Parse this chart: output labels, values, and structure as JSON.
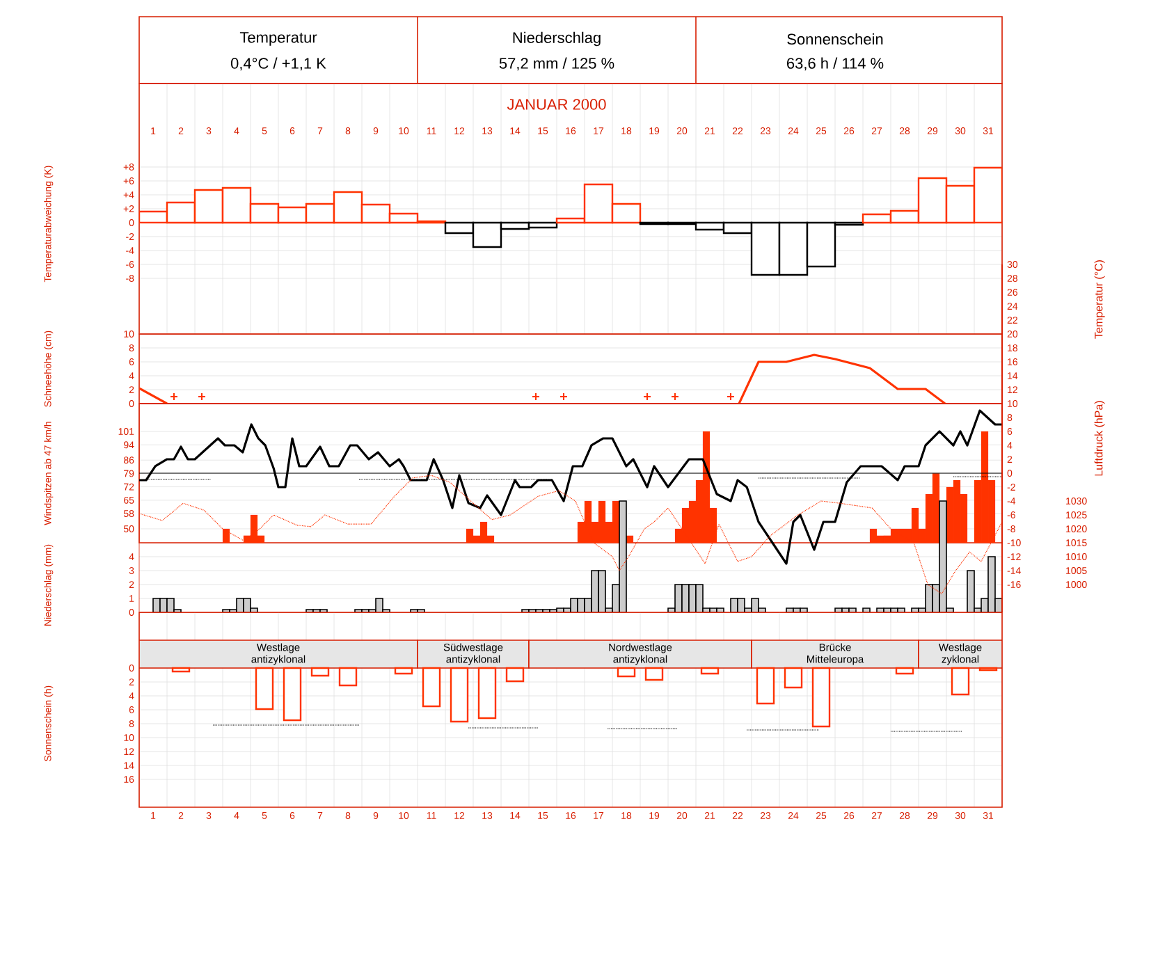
{
  "chart_data": [
    {
      "type": "other",
      "title": "JANUAR 2000",
      "annotations": [
        "Temperatur",
        "0,4°C / +1,1 K",
        "Niederschlag",
        "57,2 mm / 125 %",
        "Sonnenschein",
        "63,6 h / 114 %"
      ]
    },
    {
      "type": "bar",
      "ylabel": "Temperaturabweichung (K)",
      "x": [
        1,
        2,
        3,
        4,
        5,
        6,
        7,
        8,
        9,
        10,
        11,
        12,
        13,
        14,
        15,
        16,
        17,
        18,
        19,
        20,
        21,
        22,
        23,
        24,
        25,
        26,
        27,
        28,
        29,
        30,
        31
      ],
      "values": [
        1.6,
        2.9,
        4.7,
        5.0,
        2.7,
        2.2,
        2.7,
        4.4,
        2.6,
        1.3,
        0.2,
        -1.5,
        -3.5,
        -0.9,
        -0.7,
        0.6,
        5.5,
        2.7,
        -0.2,
        -0.2,
        -1.0,
        -1.5,
        -7.5,
        -7.5,
        -6.3,
        -0.3,
        1.2,
        1.7,
        6.4,
        5.3,
        7.9
      ],
      "colors": [
        "#ff3300",
        "#ff3300",
        "#ff3300",
        "#ff3300",
        "#ff3300",
        "#ff3300",
        "#ff3300",
        "#ff3300",
        "#ff3300",
        "#ff3300",
        "#ff3300",
        "#000000",
        "#000000",
        "#000000",
        "#000000",
        "#ff3300",
        "#ff3300",
        "#ff3300",
        "#000000",
        "#000000",
        "#000000",
        "#000000",
        "#000000",
        "#000000",
        "#000000",
        "#000000",
        "#ff3300",
        "#ff3300",
        "#ff3300",
        "#ff3300",
        "#ff3300"
      ],
      "xlim": [
        0.5,
        31.5
      ],
      "xticks": [
        1,
        2,
        3,
        4,
        5,
        6,
        7,
        8,
        9,
        10,
        11,
        12,
        13,
        14,
        15,
        16,
        17,
        18,
        19,
        20,
        21,
        22,
        23,
        24,
        25,
        26,
        27,
        28,
        29,
        30,
        31
      ],
      "ylim": [
        -16,
        20
      ],
      "yticks": [
        -8,
        -6,
        -4,
        -2,
        0,
        {
          "value": 2,
          "label": "+2"
        },
        {
          "value": 4,
          "label": "+4"
        },
        {
          "value": 6,
          "label": "+6"
        },
        {
          "value": 8,
          "label": "+8"
        }
      ],
      "grid": true
    },
    {
      "type": "line",
      "ylabel": "Schneehöhe (cm)",
      "series": [
        {
          "color": "#ff3300",
          "x": [
            0.5,
            1.5
          ],
          "values": [
            2.2,
            0
          ]
        },
        {
          "color": "#ff3300",
          "x": [
            22.05,
            22.75,
            23.75,
            24.75,
            25.5,
            26.75,
            27.75,
            28.75,
            29.45
          ],
          "values": [
            0,
            6,
            6,
            7,
            6.4,
            5.1,
            2.1,
            2.1,
            0
          ]
        },
        {
          "type": "scatter",
          "marker": "cross",
          "color": "#ff3300",
          "x": [
            1.75,
            2.75,
            14.75,
            15.75,
            18.75,
            19.75,
            21.75
          ],
          "values": [
            1,
            1,
            1,
            1,
            1,
            1,
            1
          ]
        }
      ],
      "xlim": [
        0.5,
        31.5
      ],
      "ylim": [
        0,
        10
      ],
      "yticks": [
        0,
        2,
        4,
        6,
        8,
        10
      ],
      "tick_labels": "y",
      "grid": true
    },
    {
      "type": "bar",
      "ylabel": "Windspitzen ab 47 km/h",
      "x": [
        3.625,
        4.375,
        4.625,
        4.875,
        12.375,
        12.625,
        12.875,
        13.125,
        16.375,
        16.625,
        16.875,
        17.125,
        17.375,
        17.625,
        17.875,
        18.125,
        19.875,
        20.125,
        20.375,
        20.625,
        20.875,
        21.125,
        26.875,
        27.125,
        27.375,
        27.625,
        27.875,
        28.125,
        28.375,
        28.625,
        28.875,
        29.125,
        29.375,
        29.625,
        29.875,
        30.125,
        30.625,
        30.875,
        31.125
      ],
      "values": [
        50,
        46.4,
        57.3,
        46.4,
        50,
        46.4,
        53.6,
        46.4,
        53.6,
        64.6,
        53.6,
        64.6,
        53.6,
        64.6,
        null,
        46.4,
        50,
        60.9,
        64.6,
        75.5,
        101,
        60.9,
        50,
        46.4,
        46.4,
        50,
        50,
        50,
        60.9,
        50,
        68.2,
        79.1,
        null,
        71.9,
        75.5,
        68.2,
        75.5,
        101,
        75.5
      ],
      "color": "#ff3300",
      "xlim": [
        0.5,
        31.5
      ],
      "ylim": [
        42.7,
        115.6
      ],
      "yticks": [
        50,
        58,
        65,
        72,
        79,
        86,
        94,
        101
      ],
      "tick_labels": "y",
      "grid": true
    },
    {
      "type": "line",
      "y2label": "Temperatur (°C)",
      "y3label": "Luftdruck (hPa)",
      "series": [
        {
          "axis": "y2",
          "color": "#000000",
          "x": [
            0.5,
            0.75,
            1.08,
            1.5,
            1.75,
            2.0,
            2.25,
            2.5,
            3.33,
            3.58,
            3.92,
            4.22,
            4.53,
            4.78,
            5.03,
            5.33,
            5.5,
            5.75,
            6.0,
            6.25,
            6.5,
            7.0,
            7.33,
            7.67,
            8.08,
            8.33,
            8.75,
            9.08,
            9.5,
            9.83,
            10.0,
            10.25,
            10.83,
            11.08,
            11.42,
            11.75,
            12.0,
            12.33,
            12.75,
            13.0,
            13.5,
            14.0,
            14.17,
            14.58,
            14.83,
            15.33,
            15.75,
            16.08,
            16.42,
            16.75,
            17.17,
            17.5,
            18.0,
            18.25,
            18.75,
            19.0,
            19.5,
            20.25,
            20.75,
            21.25,
            21.75,
            22.0,
            22.33,
            22.75,
            23.25,
            23.75,
            24.0,
            24.25,
            24.75,
            25.08,
            25.5,
            25.92,
            26.42,
            27.17,
            27.75,
            28.0,
            28.5,
            28.75,
            29.25,
            29.75,
            30.0,
            30.25,
            30.7,
            31.25,
            31.5
          ],
          "values": [
            -1.0,
            -1.0,
            1.0,
            2.0,
            2.0,
            3.8,
            2.0,
            2.0,
            5.0,
            4.0,
            4.0,
            3.0,
            7.0,
            5.0,
            4.0,
            0.7,
            -2.0,
            -2.0,
            5.0,
            1.0,
            1.0,
            3.8,
            1.0,
            1.0,
            4.0,
            4.0,
            2.0,
            3.0,
            1.0,
            2.0,
            1.0,
            -1.0,
            -1.0,
            2.0,
            -1.0,
            -5.0,
            -0.3,
            -4.3,
            -5.0,
            -3.2,
            -6.0,
            -1.0,
            -2.0,
            -2.0,
            -1.0,
            -1.0,
            -4.0,
            1.0,
            1.0,
            4.0,
            5.0,
            5.0,
            1.0,
            2.0,
            -2.0,
            1.0,
            -2.0,
            2.0,
            2.0,
            -3.0,
            -4.0,
            -1.0,
            -2.0,
            -7.0,
            -10.0,
            -13.0,
            -7.0,
            -6.0,
            -11.0,
            -7.0,
            -7.0,
            -1.3,
            1.0,
            1.0,
            -1.0,
            1.0,
            1.0,
            4.0,
            6.0,
            4.0,
            6.0,
            4.0,
            9.0,
            7.0,
            7.0
          ]
        },
        {
          "axis": "y2",
          "color": "#000000",
          "line_style": "dotted",
          "x": [
            0.75,
            3.08
          ],
          "values": [
            -0.9,
            -0.9
          ]
        },
        {
          "axis": "y2",
          "color": "#000000",
          "line_style": "dotted",
          "x": [
            8.4,
            15.35
          ],
          "values": [
            -0.9,
            -0.9
          ]
        },
        {
          "axis": "y2",
          "color": "#000000",
          "line_style": "dotted",
          "x": [
            22.75,
            26.4
          ],
          "values": [
            -0.7,
            -0.7
          ]
        },
        {
          "axis": "y2",
          "color": "#000000",
          "line_style": "dotted",
          "x": [
            29.75,
            31.5
          ],
          "values": [
            -0.5,
            -0.5
          ]
        },
        {
          "axis": "y3",
          "color": "#ff3300",
          "line_style": "dotted",
          "x": [
            0.5,
            1.33,
            2.08,
            2.83,
            3.5,
            4.25,
            4.83,
            5.33,
            6.17,
            6.67,
            7.17,
            8.0,
            8.83,
            9.67,
            10.33,
            11.0,
            11.67,
            12.5,
            13.17,
            13.83,
            14.83,
            15.58,
            16.17,
            16.83,
            17.5,
            17.75,
            18.08,
            18.65,
            19.0,
            19.5,
            20.0,
            20.5,
            20.83,
            21.33,
            22.0,
            22.5,
            23.17,
            24.17,
            25.0,
            25.67,
            26.83,
            27.5,
            28.33,
            28.83,
            29.33,
            29.83,
            30.33,
            30.75,
            31.5
          ],
          "values": [
            1025.5,
            1023,
            1029.2,
            1026.7,
            1020,
            1015.8,
            1020,
            1025,
            1021.3,
            1020.8,
            1025,
            1021.7,
            1021.7,
            1031.7,
            1038.3,
            1039.2,
            1036.7,
            1029.2,
            1023.3,
            1025,
            1031.7,
            1033.7,
            1030,
            1015,
            1010,
            1005,
            1010,
            1020,
            1022.5,
            1027.5,
            1020,
            1012.5,
            1007.5,
            1021.7,
            1008.3,
            1010,
            1017.5,
            1025,
            1030,
            1029.2,
            1027.5,
            1020,
            1015,
            1000,
            996.7,
            1005,
            1011.7,
            1008.3,
            1022.5
          ]
        }
      ],
      "xlim": [
        0.5,
        31.5
      ],
      "y2lim": [
        -20,
        30
      ],
      "y2ticks": [
        -16,
        -14,
        -12,
        -10,
        -8,
        -6,
        -4,
        -2,
        0,
        2,
        4,
        6,
        8,
        10,
        12,
        14,
        16,
        18,
        20,
        22,
        24,
        26,
        28,
        30
      ],
      "y3lim": [
        990,
        1115
      ],
      "y3ticks": [
        1000,
        1005,
        1010,
        1015,
        1020,
        1025,
        1030
      ],
      "ref_lines": [
        {
          "axis": "y2",
          "value": 0
        }
      ],
      "tick_labels": "y"
    },
    {
      "type": "bar",
      "ylabel": "Niederschlag (mm)",
      "x": [
        1.125,
        1.375,
        1.625,
        1.875,
        3.625,
        3.875,
        4.125,
        4.375,
        4.625,
        6.625,
        6.875,
        7.125,
        8.375,
        8.625,
        8.875,
        9.125,
        9.375,
        10.375,
        10.625,
        14.375,
        14.625,
        14.875,
        15.125,
        15.375,
        15.625,
        15.875,
        16.125,
        16.375,
        16.625,
        16.875,
        17.125,
        17.375,
        17.625,
        17.875,
        19.625,
        19.875,
        20.125,
        20.375,
        20.625,
        20.875,
        21.125,
        21.375,
        21.875,
        22.125,
        22.375,
        22.625,
        22.875,
        23.875,
        24.125,
        24.375,
        25.625,
        25.875,
        26.125,
        26.625,
        27.125,
        27.375,
        27.625,
        27.875,
        28.375,
        28.625,
        28.875,
        29.125,
        29.375,
        29.625,
        30.375,
        30.625,
        30.875,
        31.125,
        31.375
      ],
      "values": [
        1.0,
        1.0,
        1.0,
        0.2,
        0.2,
        0.2,
        1.0,
        1.0,
        0.3,
        0.2,
        0.2,
        0.2,
        0.2,
        0.2,
        0.2,
        1.0,
        0.2,
        0.2,
        0.2,
        0.2,
        0.2,
        0.2,
        0.2,
        0.2,
        0.3,
        0.3,
        1.0,
        1.0,
        1.0,
        3.0,
        3.0,
        0.3,
        2.0,
        8.0,
        0.3,
        2.0,
        2.0,
        2.0,
        2.0,
        0.3,
        0.3,
        0.3,
        1.0,
        1.0,
        0.3,
        1.0,
        0.3,
        0.3,
        0.3,
        0.3,
        0.3,
        0.3,
        0.3,
        0.3,
        0.3,
        0.3,
        0.3,
        0.3,
        0.3,
        0.3,
        2.0,
        2.0,
        8.0,
        0.3,
        3.0,
        0.3,
        1.0,
        4.0,
        1.0
      ],
      "color": "#000000",
      "xlim": [
        0.5,
        31.5
      ],
      "ylim": [
        0,
        15
      ],
      "yticks": [
        0,
        1,
        2,
        3,
        4
      ],
      "tick_labels": "y",
      "grid": "y"
    },
    {
      "type": "bar",
      "ylabel": "Sonnenschein (h)",
      "series": [
        {
          "color": "#ff3300",
          "x": [
            2,
            5,
            6,
            7,
            8,
            10,
            11,
            12,
            13,
            14,
            18,
            19,
            21,
            23,
            24,
            25,
            28,
            30,
            31
          ],
          "values": [
            0.5,
            5.9,
            7.5,
            1.1,
            2.5,
            0.8,
            5.5,
            7.7,
            7.2,
            1.9,
            1.2,
            1.7,
            0.8,
            5.1,
            2.8,
            8.4,
            0.8,
            3.8,
            0.3
          ]
        },
        {
          "type": "line",
          "line_style": "dotted",
          "color": "#000000",
          "x": [
            3.15,
            8.4
          ],
          "values": [
            8.2,
            8.2
          ]
        },
        {
          "type": "line",
          "line_style": "dotted",
          "color": "#000000",
          "x": [
            12.33,
            14.83
          ],
          "values": [
            8.6,
            8.6
          ]
        },
        {
          "type": "line",
          "line_style": "dotted",
          "color": "#000000",
          "x": [
            17.33,
            19.83
          ],
          "values": [
            8.7,
            8.7
          ]
        },
        {
          "type": "line",
          "line_style": "dotted",
          "color": "#000000",
          "x": [
            22.33,
            24.92
          ],
          "values": [
            8.9,
            8.9
          ]
        },
        {
          "type": "line",
          "line_style": "dotted",
          "color": "#000000",
          "x": [
            27.5,
            30.08
          ],
          "values": [
            9.1,
            9.1
          ]
        }
      ],
      "xlim": [
        0.5,
        31.5
      ],
      "xticks": [
        1,
        2,
        3,
        4,
        5,
        6,
        7,
        8,
        9,
        10,
        11,
        12,
        13,
        14,
        15,
        16,
        17,
        18,
        19,
        20,
        21,
        22,
        23,
        24,
        25,
        26,
        27,
        28,
        29,
        30,
        31
      ],
      "ylim": [
        20,
        -8
      ],
      "yticks": [
        0,
        2,
        4,
        6,
        8,
        10,
        12,
        14,
        16
      ],
      "grid": true,
      "bands": [
        {
          "axis": "x",
          "from": 0.5,
          "to": 10.5,
          "label": "Westlage antizyklonal",
          "color": "#e6e6e6"
        },
        {
          "axis": "x",
          "from": 10.5,
          "to": 14.5,
          "label": "Südwestlage antizyklonal",
          "color": "#e6e6e6"
        },
        {
          "axis": "x",
          "from": 14.5,
          "to": 22.5,
          "label": "Nordwestlage antizyklonal",
          "color": "#e6e6e6"
        },
        {
          "axis": "x",
          "from": 22.5,
          "to": 28.5,
          "label": "Brücke Mitteleuropa",
          "color": "#e6e6e6"
        },
        {
          "axis": "x",
          "from": 28.5,
          "to": 31.5,
          "label": "Westlage zyklonal",
          "color": "#e6e6e6"
        }
      ]
    }
  ]
}
